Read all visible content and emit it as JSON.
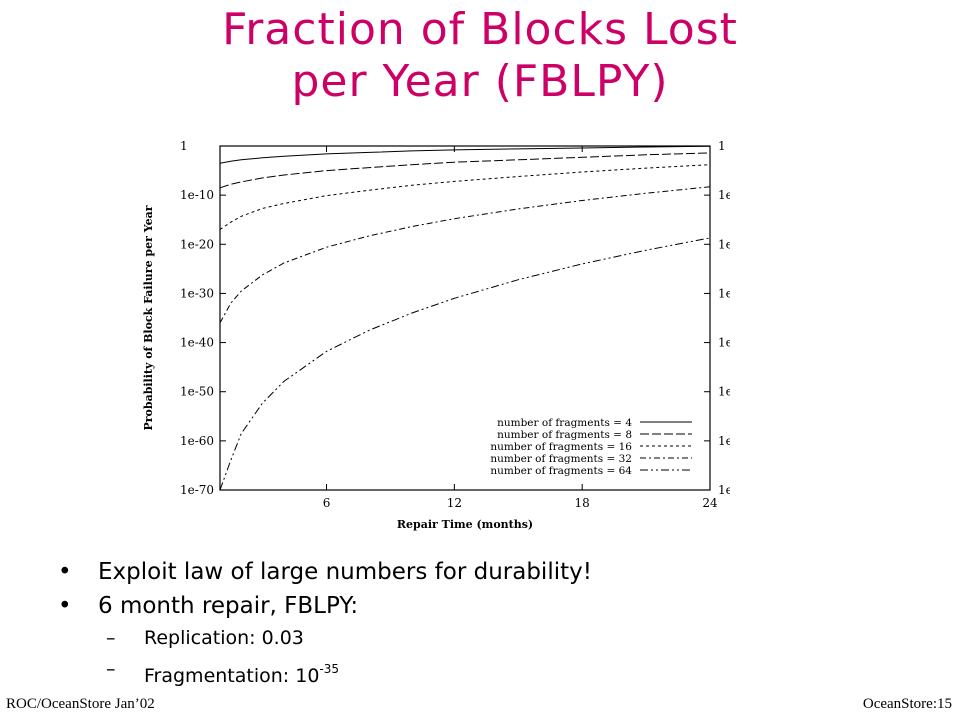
{
  "title": {
    "line1": "Fraction of Blocks Lost",
    "line2": "per Year (FBLPY)"
  },
  "chart_data": {
    "type": "line",
    "xlabel": "Repair Time (months)",
    "ylabel": "Probability of Block Failure per Year",
    "xlim": [
      1,
      24
    ],
    "ylim_log10": [
      -70,
      0
    ],
    "x_ticks": [
      "6",
      "12",
      "18",
      "24"
    ],
    "y_ticks": [
      "1",
      "1e-10",
      "1e-20",
      "1e-30",
      "1e-40",
      "1e-50",
      "1e-60",
      "1e-70"
    ],
    "y_scale": "log",
    "legend_placement": "bottom-right",
    "x": [
      1,
      1.5,
      2,
      3,
      4,
      6,
      8,
      10,
      12,
      15,
      18,
      21,
      24
    ],
    "series": [
      {
        "name": "number of fragments = 4",
        "dash": "",
        "log10_values": [
          -3.5,
          -3.1,
          -2.8,
          -2.4,
          -2.1,
          -1.6,
          -1.3,
          -1.0,
          -0.8,
          -0.6,
          -0.4,
          -0.2,
          -0.05
        ]
      },
      {
        "name": "number of fragments = 8",
        "dash": "9 3",
        "log10_values": [
          -8.5,
          -7.8,
          -7.3,
          -6.5,
          -5.9,
          -5.0,
          -4.4,
          -3.8,
          -3.3,
          -2.8,
          -2.3,
          -1.8,
          -1.4
        ]
      },
      {
        "name": "number of fragments = 16",
        "dash": "3 3",
        "log10_values": [
          -17,
          -15.5,
          -14.3,
          -12.7,
          -11.7,
          -10.1,
          -9.0,
          -8.0,
          -7.2,
          -6.2,
          -5.3,
          -4.5,
          -3.8
        ]
      },
      {
        "name": "number of fragments = 32",
        "dash": "6 3 2 3",
        "log10_values": [
          -36,
          -32,
          -29.5,
          -26.2,
          -23.8,
          -20.6,
          -18.3,
          -16.4,
          -14.8,
          -12.8,
          -11.1,
          -9.6,
          -8.3
        ]
      },
      {
        "name": "number of fragments = 64",
        "dash": "8 3 2 3 2 3",
        "log10_values": [
          -70,
          -64,
          -58.5,
          -52.3,
          -47.9,
          -41.8,
          -37.5,
          -34.0,
          -31.0,
          -27.2,
          -24.0,
          -21.2,
          -18.7
        ]
      }
    ]
  },
  "bullets": [
    {
      "text": "Exploit law of large numbers for durability!"
    },
    {
      "text": "6 month repair, FBLPY:"
    }
  ],
  "sub_bullets": [
    {
      "text": "Replication: 0.03"
    },
    {
      "text": "Fragmentation: 10",
      "sup": "-35"
    }
  ],
  "bullet_glyph": "•",
  "sub_glyph": "–",
  "footer": {
    "left": "ROC/OceanStore Jan’02",
    "right": "OceanStore:15"
  }
}
